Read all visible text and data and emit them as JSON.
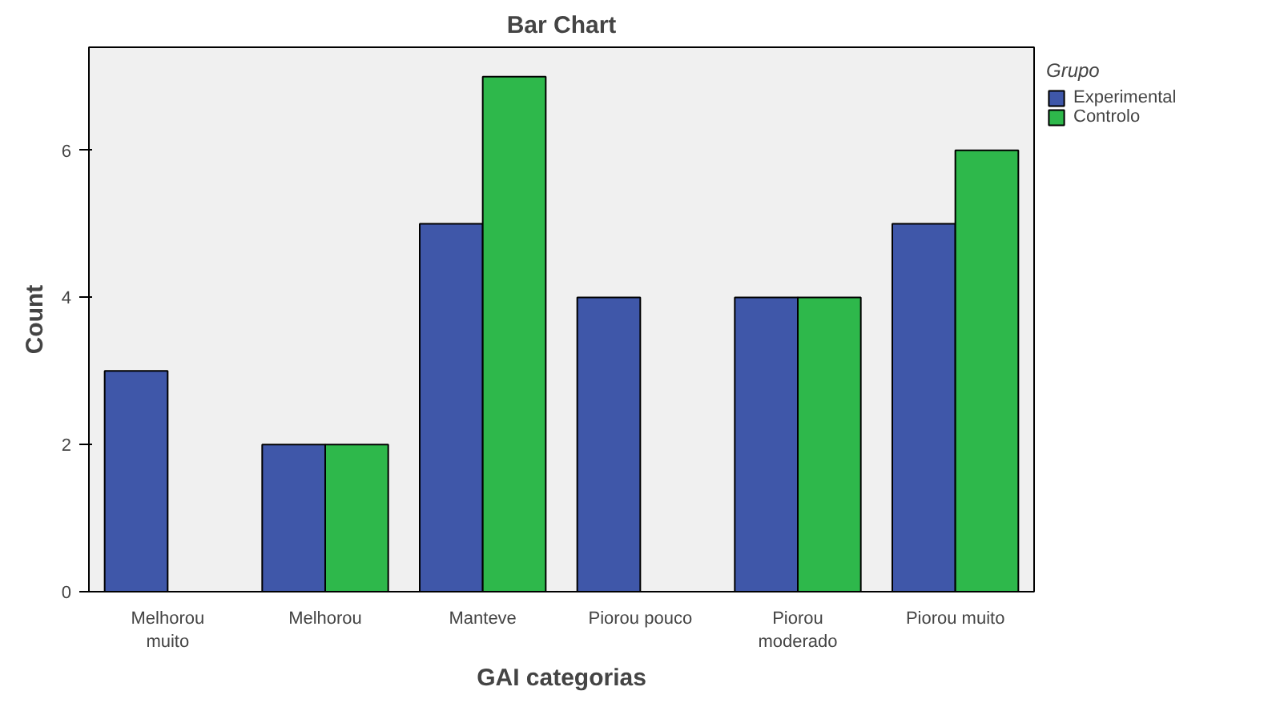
{
  "chart_data": {
    "type": "bar",
    "title": "Bar Chart",
    "xlabel": "GAI categorias",
    "ylabel": "Count",
    "legend_title": "Grupo",
    "categories": [
      "Melhorou muito",
      "Melhorou",
      "Manteve",
      "Piorou pouco",
      "Piorou moderado",
      "Piorou muito"
    ],
    "series": [
      {
        "name": "Experimental",
        "color": "#3f57a9",
        "values": [
          3,
          2,
          5,
          4,
          4,
          5
        ]
      },
      {
        "name": "Controlo",
        "color": "#2eb84b",
        "values": [
          null,
          2,
          7,
          null,
          4,
          6
        ]
      }
    ],
    "ylim": [
      0,
      7.4
    ],
    "yticks": [
      0,
      2,
      4,
      6
    ],
    "grid": false,
    "legend": "top right"
  }
}
